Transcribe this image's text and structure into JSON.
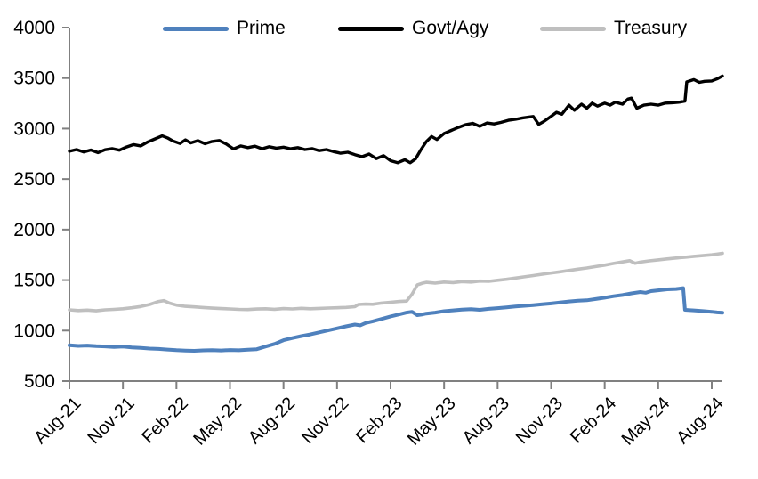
{
  "chart_data": {
    "type": "line",
    "title": "",
    "grid": false,
    "background": "#FFFFFF",
    "legend": {
      "position": "top",
      "entries": [
        "Prime",
        "Govt/Agy",
        "Treasury"
      ]
    },
    "x_axis": {
      "label": "",
      "unit": "month",
      "tick_labels": [
        "Aug-21",
        "Nov-21",
        "Feb-22",
        "May-22",
        "Aug-22",
        "Nov-22",
        "Feb-23",
        "May-23",
        "Aug-23",
        "Nov-23",
        "Feb-24",
        "May-24",
        "Aug-24"
      ],
      "tick_months": [
        0,
        3,
        6,
        9,
        12,
        15,
        18,
        21,
        24,
        27,
        30,
        33,
        36
      ],
      "range_months": [
        0,
        36.6
      ]
    },
    "y_axis": {
      "label": "",
      "ticks": [
        500,
        1000,
        1500,
        2000,
        2500,
        3000,
        3500,
        4000
      ],
      "range": [
        500,
        4000
      ]
    },
    "series": [
      {
        "name": "Prime",
        "color": "#4F81BD",
        "points": [
          [
            0,
            855
          ],
          [
            0.5,
            848
          ],
          [
            1,
            852
          ],
          [
            1.5,
            846
          ],
          [
            2,
            843
          ],
          [
            2.5,
            838
          ],
          [
            3,
            841
          ],
          [
            3.5,
            833
          ],
          [
            4,
            828
          ],
          [
            4.5,
            822
          ],
          [
            5,
            818
          ],
          [
            5.5,
            812
          ],
          [
            6,
            806
          ],
          [
            6.5,
            802
          ],
          [
            7,
            800
          ],
          [
            7.5,
            804
          ],
          [
            8,
            806
          ],
          [
            8.5,
            803
          ],
          [
            9,
            808
          ],
          [
            9.5,
            805
          ],
          [
            10,
            810
          ],
          [
            10.5,
            816
          ],
          [
            11,
            842
          ],
          [
            11.5,
            868
          ],
          [
            12,
            905
          ],
          [
            12.5,
            926
          ],
          [
            13,
            945
          ],
          [
            13.5,
            962
          ],
          [
            14,
            982
          ],
          [
            14.5,
            1002
          ],
          [
            15,
            1022
          ],
          [
            15.5,
            1042
          ],
          [
            16,
            1060
          ],
          [
            16.3,
            1052
          ],
          [
            16.6,
            1075
          ],
          [
            17,
            1092
          ],
          [
            17.5,
            1115
          ],
          [
            18,
            1140
          ],
          [
            18.5,
            1160
          ],
          [
            18.9,
            1178
          ],
          [
            19.2,
            1186
          ],
          [
            19.5,
            1152
          ],
          [
            19.8,
            1160
          ],
          [
            20,
            1168
          ],
          [
            20.5,
            1178
          ],
          [
            21,
            1192
          ],
          [
            21.5,
            1200
          ],
          [
            22,
            1207
          ],
          [
            22.5,
            1212
          ],
          [
            23,
            1205
          ],
          [
            23.5,
            1215
          ],
          [
            24,
            1222
          ],
          [
            24.5,
            1230
          ],
          [
            25,
            1238
          ],
          [
            25.5,
            1245
          ],
          [
            26,
            1252
          ],
          [
            26.5,
            1260
          ],
          [
            27,
            1268
          ],
          [
            27.5,
            1278
          ],
          [
            28,
            1288
          ],
          [
            28.5,
            1295
          ],
          [
            29,
            1300
          ],
          [
            29.5,
            1312
          ],
          [
            30,
            1325
          ],
          [
            30.5,
            1340
          ],
          [
            31,
            1352
          ],
          [
            31.5,
            1368
          ],
          [
            32,
            1382
          ],
          [
            32.3,
            1375
          ],
          [
            32.6,
            1390
          ],
          [
            33,
            1398
          ],
          [
            33.5,
            1408
          ],
          [
            34,
            1412
          ],
          [
            34.3,
            1418
          ],
          [
            34.4,
            1420
          ],
          [
            34.5,
            1205
          ],
          [
            35,
            1200
          ],
          [
            35.5,
            1193
          ],
          [
            36,
            1186
          ],
          [
            36.3,
            1180
          ],
          [
            36.6,
            1176
          ]
        ]
      },
      {
        "name": "Govt/Agy",
        "color": "#000000",
        "points": [
          [
            0,
            2775
          ],
          [
            0.4,
            2792
          ],
          [
            0.8,
            2768
          ],
          [
            1.2,
            2788
          ],
          [
            1.6,
            2762
          ],
          [
            2,
            2790
          ],
          [
            2.4,
            2802
          ],
          [
            2.8,
            2786
          ],
          [
            3.2,
            2818
          ],
          [
            3.6,
            2842
          ],
          [
            4,
            2828
          ],
          [
            4.4,
            2868
          ],
          [
            4.8,
            2898
          ],
          [
            5.2,
            2928
          ],
          [
            5.5,
            2908
          ],
          [
            5.8,
            2878
          ],
          [
            6.2,
            2852
          ],
          [
            6.5,
            2888
          ],
          [
            6.8,
            2858
          ],
          [
            7.2,
            2880
          ],
          [
            7.6,
            2850
          ],
          [
            8,
            2872
          ],
          [
            8.4,
            2882
          ],
          [
            8.8,
            2846
          ],
          [
            9.2,
            2798
          ],
          [
            9.6,
            2828
          ],
          [
            10,
            2812
          ],
          [
            10.4,
            2826
          ],
          [
            10.8,
            2800
          ],
          [
            11.2,
            2820
          ],
          [
            11.6,
            2806
          ],
          [
            12,
            2816
          ],
          [
            12.4,
            2800
          ],
          [
            12.8,
            2812
          ],
          [
            13.2,
            2792
          ],
          [
            13.6,
            2802
          ],
          [
            14,
            2782
          ],
          [
            14.4,
            2792
          ],
          [
            14.8,
            2772
          ],
          [
            15.2,
            2756
          ],
          [
            15.6,
            2766
          ],
          [
            16,
            2742
          ],
          [
            16.4,
            2722
          ],
          [
            16.8,
            2748
          ],
          [
            17.2,
            2702
          ],
          [
            17.6,
            2732
          ],
          [
            18,
            2682
          ],
          [
            18.4,
            2662
          ],
          [
            18.8,
            2692
          ],
          [
            19.1,
            2662
          ],
          [
            19.4,
            2700
          ],
          [
            19.7,
            2790
          ],
          [
            20,
            2870
          ],
          [
            20.3,
            2922
          ],
          [
            20.6,
            2892
          ],
          [
            21,
            2952
          ],
          [
            21.4,
            2982
          ],
          [
            21.8,
            3012
          ],
          [
            22.2,
            3038
          ],
          [
            22.6,
            3052
          ],
          [
            23,
            3022
          ],
          [
            23.4,
            3056
          ],
          [
            23.8,
            3046
          ],
          [
            24.2,
            3062
          ],
          [
            24.6,
            3082
          ],
          [
            25,
            3092
          ],
          [
            25.4,
            3106
          ],
          [
            25.8,
            3116
          ],
          [
            26,
            3120
          ],
          [
            26.3,
            3042
          ],
          [
            26.6,
            3072
          ],
          [
            27,
            3122
          ],
          [
            27.3,
            3162
          ],
          [
            27.6,
            3142
          ],
          [
            28,
            3232
          ],
          [
            28.3,
            3182
          ],
          [
            28.7,
            3242
          ],
          [
            29,
            3202
          ],
          [
            29.3,
            3252
          ],
          [
            29.6,
            3222
          ],
          [
            30,
            3252
          ],
          [
            30.3,
            3232
          ],
          [
            30.6,
            3262
          ],
          [
            31,
            3242
          ],
          [
            31.3,
            3292
          ],
          [
            31.5,
            3302
          ],
          [
            31.8,
            3202
          ],
          [
            32.2,
            3232
          ],
          [
            32.6,
            3242
          ],
          [
            33,
            3232
          ],
          [
            33.4,
            3252
          ],
          [
            33.8,
            3256
          ],
          [
            34.2,
            3262
          ],
          [
            34.5,
            3272
          ],
          [
            34.6,
            3462
          ],
          [
            35,
            3485
          ],
          [
            35.3,
            3458
          ],
          [
            35.6,
            3468
          ],
          [
            36,
            3472
          ],
          [
            36.3,
            3492
          ],
          [
            36.6,
            3520
          ]
        ]
      },
      {
        "name": "Treasury",
        "color": "#BFBFBF",
        "points": [
          [
            0,
            1205
          ],
          [
            0.5,
            1198
          ],
          [
            1,
            1203
          ],
          [
            1.5,
            1196
          ],
          [
            2,
            1205
          ],
          [
            2.5,
            1210
          ],
          [
            3,
            1216
          ],
          [
            3.5,
            1226
          ],
          [
            4,
            1238
          ],
          [
            4.5,
            1258
          ],
          [
            5,
            1288
          ],
          [
            5.3,
            1296
          ],
          [
            5.6,
            1272
          ],
          [
            6,
            1252
          ],
          [
            6.5,
            1240
          ],
          [
            7,
            1234
          ],
          [
            7.5,
            1228
          ],
          [
            8,
            1222
          ],
          [
            8.5,
            1218
          ],
          [
            9,
            1214
          ],
          [
            9.5,
            1210
          ],
          [
            10,
            1208
          ],
          [
            10.5,
            1213
          ],
          [
            11,
            1216
          ],
          [
            11.5,
            1211
          ],
          [
            12,
            1218
          ],
          [
            12.5,
            1214
          ],
          [
            13,
            1220
          ],
          [
            13.5,
            1216
          ],
          [
            14,
            1219
          ],
          [
            14.5,
            1223
          ],
          [
            15,
            1226
          ],
          [
            15.5,
            1229
          ],
          [
            16,
            1236
          ],
          [
            16.2,
            1258
          ],
          [
            16.6,
            1262
          ],
          [
            17,
            1260
          ],
          [
            17.5,
            1272
          ],
          [
            18,
            1280
          ],
          [
            18.5,
            1288
          ],
          [
            18.9,
            1292
          ],
          [
            19.2,
            1360
          ],
          [
            19.5,
            1452
          ],
          [
            19.8,
            1470
          ],
          [
            20,
            1478
          ],
          [
            20.5,
            1470
          ],
          [
            21,
            1480
          ],
          [
            21.5,
            1475
          ],
          [
            22,
            1485
          ],
          [
            22.5,
            1480
          ],
          [
            23,
            1490
          ],
          [
            23.5,
            1487
          ],
          [
            24,
            1498
          ],
          [
            24.5,
            1508
          ],
          [
            25,
            1520
          ],
          [
            25.5,
            1532
          ],
          [
            26,
            1545
          ],
          [
            26.5,
            1558
          ],
          [
            27,
            1570
          ],
          [
            27.5,
            1582
          ],
          [
            28,
            1595
          ],
          [
            28.5,
            1608
          ],
          [
            29,
            1620
          ],
          [
            29.5,
            1634
          ],
          [
            30,
            1648
          ],
          [
            30.5,
            1665
          ],
          [
            31,
            1680
          ],
          [
            31.4,
            1692
          ],
          [
            31.7,
            1666
          ],
          [
            32,
            1678
          ],
          [
            32.5,
            1690
          ],
          [
            33,
            1700
          ],
          [
            33.5,
            1710
          ],
          [
            34,
            1718
          ],
          [
            34.5,
            1726
          ],
          [
            35,
            1735
          ],
          [
            35.5,
            1742
          ],
          [
            36,
            1750
          ],
          [
            36.3,
            1757
          ],
          [
            36.6,
            1765
          ]
        ]
      }
    ],
    "styles": {
      "axis_color": "#808080",
      "text_color": "#000000",
      "y_label_font_px": 21,
      "x_label_font_px": 20,
      "x_label_rotation_deg": -45
    }
  }
}
